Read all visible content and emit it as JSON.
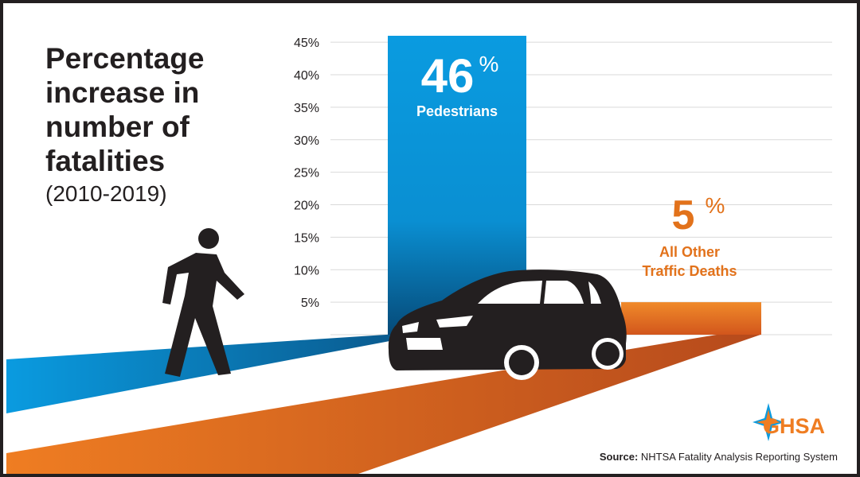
{
  "chart_data": {
    "type": "bar",
    "title": "Percentage increase in number of fatalities",
    "subtitle": "(2010-2019)",
    "categories": [
      "Pedestrians",
      "All Other Traffic Deaths"
    ],
    "values": [
      46,
      5
    ],
    "value_labels": [
      "46",
      "5"
    ],
    "value_suffix": "%",
    "ylim": [
      0,
      46
    ],
    "yticks": [
      5,
      10,
      15,
      20,
      25,
      30,
      35,
      40,
      45
    ],
    "ytick_labels": [
      "5%",
      "10%",
      "15%",
      "20%",
      "25%",
      "30%",
      "35%",
      "40%",
      "45%"
    ],
    "grid": true,
    "colors": {
      "pedestrians": "#0a9be0",
      "other": "#ef7d22",
      "label_other": "#e2721b",
      "text": "#231f20"
    }
  },
  "source": {
    "label": "Source:",
    "text": "NHTSA Fatality Analysis Reporting System"
  },
  "logo": {
    "text": "GHSA"
  },
  "icons": {
    "pedestrian": "walking-person-icon",
    "car": "car-icon",
    "logo": "compass-star-icon"
  }
}
